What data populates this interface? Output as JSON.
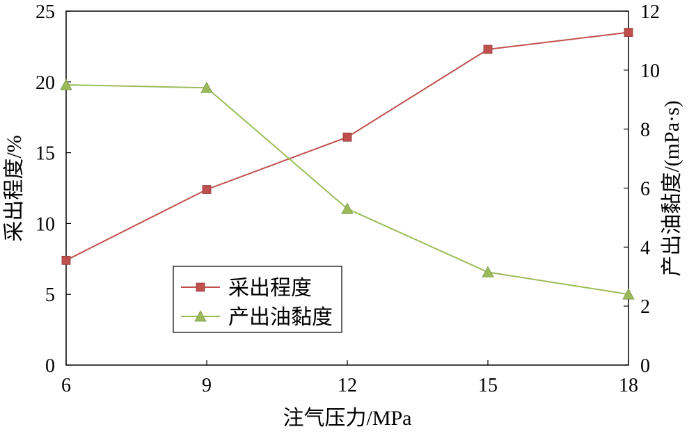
{
  "chart_data": {
    "type": "line",
    "title": "",
    "xlabel": "注气压力/MPa",
    "ylabel_left": "采出程度/%",
    "ylabel_right": "产出油黏度/(mPa·s)",
    "x": [
      6,
      9,
      12,
      15,
      18
    ],
    "xlim": [
      6,
      18
    ],
    "x_ticks": [
      6,
      9,
      12,
      15,
      18
    ],
    "ylim_left": [
      0,
      25
    ],
    "y_ticks_left": [
      0,
      5,
      10,
      15,
      20,
      25
    ],
    "ylim_right": [
      0,
      12
    ],
    "y_ticks_right": [
      0,
      2,
      4,
      6,
      8,
      10,
      12
    ],
    "grid": false,
    "legend_position": "bottom-center",
    "series": [
      {
        "name": "采出程度",
        "axis": "left",
        "color": "#C0504D",
        "marker": "square",
        "values": [
          7.4,
          12.4,
          16.1,
          22.3,
          23.5
        ]
      },
      {
        "name": "产出油黏度",
        "axis": "right",
        "color": "#9BBB59",
        "marker": "triangle",
        "values": [
          9.5,
          9.4,
          5.3,
          3.15,
          2.4
        ]
      }
    ]
  }
}
